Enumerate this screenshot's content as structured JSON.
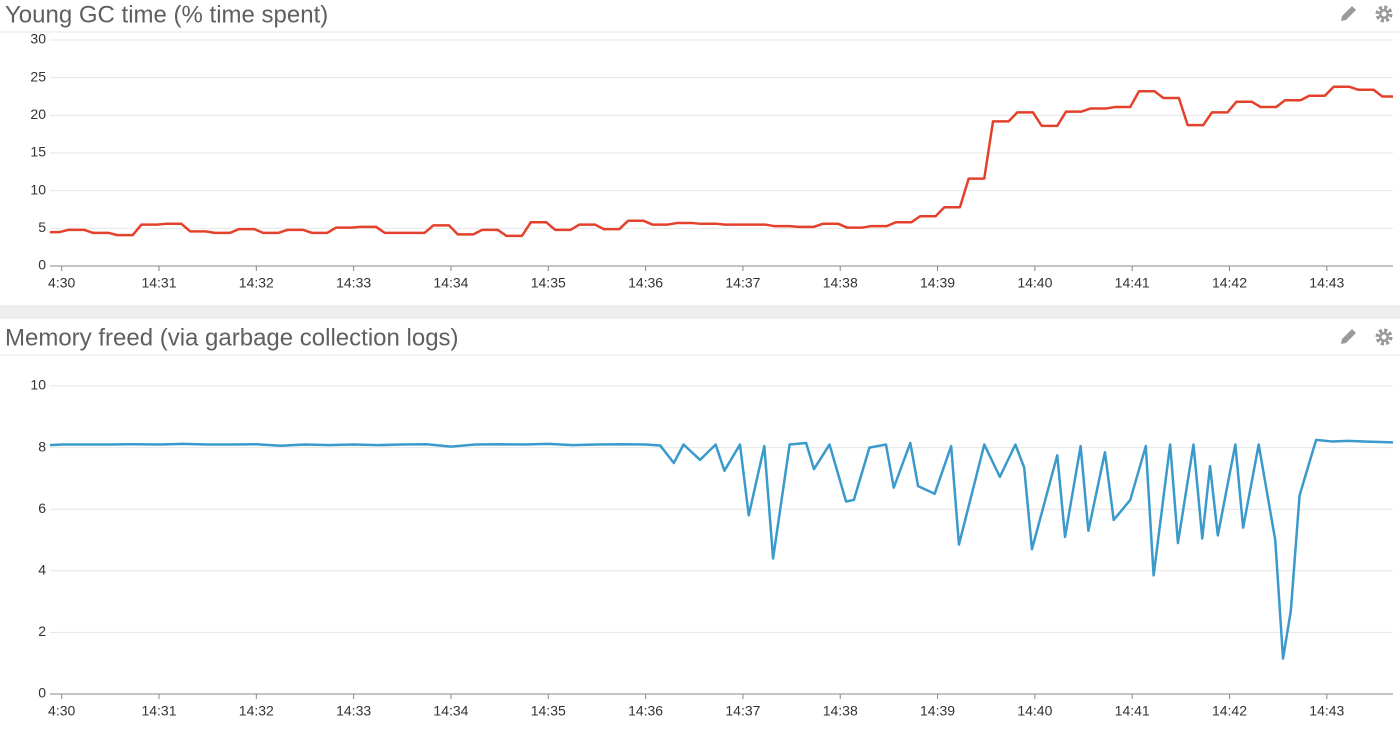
{
  "chart_data": [
    {
      "type": "line",
      "title": "Young GC time (% time spent)",
      "color": "#e3412b",
      "grid": true,
      "xlim": [
        29.88,
        43.68
      ],
      "ylim": [
        0,
        30
      ],
      "yticks": [
        0,
        5,
        10,
        15,
        20,
        25,
        30
      ],
      "xticks": [
        {
          "value": 30,
          "label": "4:30"
        },
        {
          "value": 31,
          "label": "14:31"
        },
        {
          "value": 32,
          "label": "14:32"
        },
        {
          "value": 33,
          "label": "14:33"
        },
        {
          "value": 34,
          "label": "14:34"
        },
        {
          "value": 35,
          "label": "14:35"
        },
        {
          "value": 36,
          "label": "14:36"
        },
        {
          "value": 37,
          "label": "14:37"
        },
        {
          "value": 38,
          "label": "14:38"
        },
        {
          "value": 39,
          "label": "14:39"
        },
        {
          "value": 40,
          "label": "14:40"
        },
        {
          "value": 41,
          "label": "14:41"
        },
        {
          "value": 42,
          "label": "14:42"
        },
        {
          "value": 43,
          "label": "14:43"
        }
      ],
      "x": [
        29.88,
        29.98,
        30.07,
        30.23,
        30.32,
        30.48,
        30.57,
        30.73,
        30.82,
        30.98,
        31.07,
        31.23,
        31.32,
        31.48,
        31.57,
        31.73,
        31.82,
        31.98,
        32.07,
        32.23,
        32.32,
        32.48,
        32.57,
        32.73,
        32.82,
        32.98,
        33.07,
        33.23,
        33.32,
        33.48,
        33.57,
        33.73,
        33.82,
        33.98,
        34.07,
        34.23,
        34.32,
        34.48,
        34.57,
        34.73,
        34.82,
        34.98,
        35.07,
        35.23,
        35.32,
        35.48,
        35.57,
        35.73,
        35.82,
        35.98,
        36.07,
        36.23,
        36.32,
        36.48,
        36.57,
        36.73,
        36.82,
        36.98,
        37.07,
        37.23,
        37.32,
        37.48,
        37.57,
        37.73,
        37.82,
        37.98,
        38.07,
        38.23,
        38.32,
        38.48,
        38.57,
        38.73,
        38.82,
        38.98,
        39.07,
        39.23,
        39.32,
        39.48,
        39.57,
        39.73,
        39.82,
        39.98,
        40.07,
        40.23,
        40.32,
        40.48,
        40.57,
        40.73,
        40.82,
        40.98,
        41.07,
        41.23,
        41.32,
        41.48,
        41.57,
        41.73,
        41.82,
        41.98,
        42.07,
        42.23,
        42.32,
        42.48,
        42.57,
        42.73,
        42.82,
        42.98,
        43.07,
        43.23,
        43.32,
        43.48,
        43.57,
        43.68
      ],
      "values": [
        4.5,
        4.5,
        4.8,
        4.8,
        4.4,
        4.4,
        4.1,
        4.1,
        5.5,
        5.5,
        5.6,
        5.6,
        4.6,
        4.6,
        4.4,
        4.4,
        4.9,
        4.9,
        4.4,
        4.4,
        4.8,
        4.8,
        4.4,
        4.4,
        5.1,
        5.1,
        5.2,
        5.2,
        4.4,
        4.4,
        4.4,
        4.4,
        5.4,
        5.4,
        4.2,
        4.2,
        4.8,
        4.8,
        4.0,
        4.0,
        5.8,
        5.8,
        4.8,
        4.8,
        5.5,
        5.5,
        4.9,
        4.9,
        6.0,
        6.0,
        5.5,
        5.5,
        5.7,
        5.7,
        5.6,
        5.6,
        5.5,
        5.5,
        5.5,
        5.5,
        5.3,
        5.3,
        5.2,
        5.2,
        5.6,
        5.6,
        5.1,
        5.1,
        5.3,
        5.3,
        5.8,
        5.8,
        6.6,
        6.6,
        7.8,
        7.8,
        11.6,
        11.6,
        19.2,
        19.2,
        20.4,
        20.4,
        18.6,
        18.6,
        20.5,
        20.5,
        20.9,
        20.9,
        21.1,
        21.1,
        23.2,
        23.2,
        22.3,
        22.3,
        18.7,
        18.7,
        20.4,
        20.4,
        21.8,
        21.8,
        21.1,
        21.1,
        22.0,
        22.0,
        22.6,
        22.6,
        23.8,
        23.8,
        23.4,
        23.4,
        22.5,
        22.5
      ]
    },
    {
      "type": "line",
      "title": "Memory freed (via garbage collection logs)",
      "color": "#3a9acb",
      "grid": true,
      "xlim": [
        29.88,
        43.68
      ],
      "ylim": [
        0,
        10
      ],
      "yticks": [
        0,
        2,
        4,
        6,
        8,
        10
      ],
      "xticks": [
        {
          "value": 30,
          "label": "4:30"
        },
        {
          "value": 31,
          "label": "14:31"
        },
        {
          "value": 32,
          "label": "14:32"
        },
        {
          "value": 33,
          "label": "14:33"
        },
        {
          "value": 34,
          "label": "14:34"
        },
        {
          "value": 35,
          "label": "14:35"
        },
        {
          "value": 36,
          "label": "14:36"
        },
        {
          "value": 37,
          "label": "14:37"
        },
        {
          "value": 38,
          "label": "14:38"
        },
        {
          "value": 39,
          "label": "14:39"
        },
        {
          "value": 40,
          "label": "14:40"
        },
        {
          "value": 41,
          "label": "14:41"
        },
        {
          "value": 42,
          "label": "14:42"
        },
        {
          "value": 43,
          "label": "14:43"
        }
      ],
      "x": [
        29.88,
        30.0,
        30.25,
        30.5,
        30.75,
        31.0,
        31.25,
        31.5,
        31.75,
        32.0,
        32.25,
        32.5,
        32.75,
        33.0,
        33.25,
        33.5,
        33.75,
        34.0,
        34.25,
        34.5,
        34.75,
        35.0,
        35.25,
        35.5,
        35.75,
        36.0,
        36.15,
        36.29,
        36.39,
        36.56,
        36.72,
        36.81,
        36.97,
        37.06,
        37.22,
        37.31,
        37.48,
        37.65,
        37.73,
        37.89,
        38.06,
        38.14,
        38.3,
        38.47,
        38.55,
        38.72,
        38.8,
        38.97,
        39.14,
        39.22,
        39.48,
        39.64,
        39.8,
        39.89,
        39.97,
        40.23,
        40.31,
        40.47,
        40.55,
        40.72,
        40.81,
        40.98,
        41.14,
        41.22,
        41.39,
        41.47,
        41.63,
        41.72,
        41.8,
        41.88,
        42.06,
        42.14,
        42.3,
        42.47,
        42.55,
        42.63,
        42.72,
        42.89,
        43.05,
        43.22,
        43.38,
        43.55,
        43.68
      ],
      "values": [
        8.08,
        8.1,
        8.1,
        8.1,
        8.11,
        8.1,
        8.12,
        8.1,
        8.1,
        8.11,
        8.06,
        8.1,
        8.08,
        8.1,
        8.08,
        8.1,
        8.11,
        8.03,
        8.1,
        8.11,
        8.1,
        8.12,
        8.08,
        8.1,
        8.11,
        8.1,
        8.07,
        7.5,
        8.1,
        7.6,
        8.1,
        7.25,
        8.1,
        5.8,
        8.05,
        4.4,
        8.1,
        8.15,
        7.3,
        8.1,
        6.25,
        6.3,
        8.0,
        8.1,
        6.7,
        8.15,
        6.75,
        6.5,
        8.05,
        4.85,
        8.1,
        7.05,
        8.1,
        7.35,
        4.7,
        7.75,
        5.1,
        8.05,
        5.3,
        7.85,
        5.65,
        6.3,
        8.05,
        3.85,
        8.1,
        4.9,
        8.1,
        5.05,
        7.4,
        5.15,
        8.1,
        5.4,
        8.1,
        5.0,
        1.15,
        2.7,
        6.45,
        8.25,
        8.2,
        8.22,
        8.2,
        8.18,
        8.17
      ]
    }
  ]
}
